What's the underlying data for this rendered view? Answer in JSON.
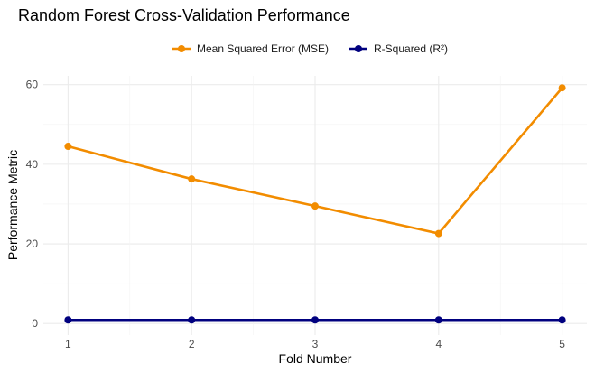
{
  "chart_data": {
    "type": "line",
    "title": "Random Forest Cross-Validation Performance",
    "xlabel": "Fold Number",
    "ylabel": "Performance Metric",
    "x": [
      1,
      2,
      3,
      4,
      5
    ],
    "xticks": [
      "1",
      "2",
      "3",
      "4",
      "5"
    ],
    "yticks": [
      "0",
      "20",
      "40",
      "60"
    ],
    "ylim": [
      -2.9,
      62.2
    ],
    "xlim": [
      0.8,
      5.2
    ],
    "grid": true,
    "legend_position": "top",
    "series": [
      {
        "name": "Mean Squared Error (MSE)",
        "color": "#F28C00",
        "values": [
          44.5,
          36.3,
          29.5,
          22.6,
          59.2
        ]
      },
      {
        "name": "R-Squared (R²)",
        "color": "#00007F",
        "values": [
          0.9,
          0.9,
          0.9,
          0.9,
          0.9
        ]
      }
    ]
  }
}
